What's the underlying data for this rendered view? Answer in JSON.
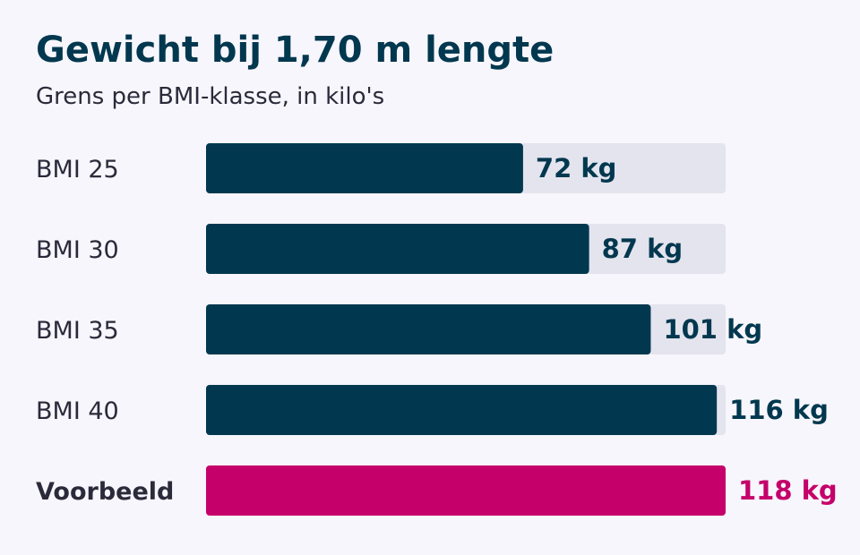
{
  "chart_data": {
    "type": "bar",
    "orientation": "horizontal",
    "title": "Gewicht bij 1,70 m lengte",
    "subtitle": "Grens per BMI-klasse, in kilo's",
    "categories": [
      "BMI 25",
      "BMI 30",
      "BMI 35",
      "BMI 40",
      "Voorbeeld"
    ],
    "values": [
      72,
      87,
      101,
      116,
      118
    ],
    "value_labels": [
      "72 kg",
      "87 kg",
      "101 kg",
      "116 kg",
      "118 kg"
    ],
    "highlight_category": "Voorbeeld",
    "xlim": [
      0,
      118
    ],
    "background_track": true,
    "grid": false
  },
  "colors": {
    "background": "#f7f6fc",
    "bar": "#02384f",
    "track": "#e4e4ee",
    "highlight": "#c5006a",
    "title": "#02384f",
    "label": "#2a2a3a"
  }
}
